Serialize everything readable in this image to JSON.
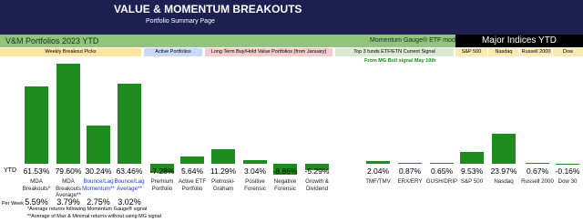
{
  "header": {
    "title": "VALUE & MOMENTUM BREAKOUTS",
    "subtitle": "Portfolio Summary Page"
  },
  "bands": [
    "V&M Portfolios 2023 YTD",
    "Momentum Gauge® ETF model",
    "Major Indices YTD"
  ],
  "sections": [
    "Weekly Breakout Picks",
    "Active Portfolios",
    "Long Term Buy/Hold Value Portfolios (from January)",
    "Top 3 funds ETF/ETN Current Signal",
    "S&P 500",
    "Nasdaq",
    "Russell 2000",
    "Dow"
  ],
  "chart_data": {
    "type": "bar",
    "annotation": "From MG Bull signal May 10th",
    "row_label": "YTD",
    "categories": [
      "MDA Breakouts*",
      "MDA Breakouts Average**",
      "Bounce/Lag Momentum**",
      "Bounce/Lag Average**",
      "Premium Portfolio",
      "Active ETF Portfolio",
      "Piotroski-Graham",
      "Positive Forensic",
      "Negative Forensic",
      "Growth & Dividend",
      "TMF/TMV",
      "ERX/ERY",
      "GUSH/DRIP",
      "S&P 500",
      "Nasdaq",
      "Russell 2000",
      "Dow 30"
    ],
    "values": [
      61.53,
      79.6,
      30.24,
      63.46,
      -7.28,
      5.64,
      11.29,
      3.04,
      -8.86,
      -5.29,
      2.04,
      0.87,
      0.65,
      9.53,
      23.97,
      0.67,
      -0.16
    ],
    "value_labels": [
      "61.53%",
      "79.60%",
      "30.24%",
      "63.46%",
      "-7.28%",
      "5.64%",
      "11.29%",
      "3.04%",
      "-8.86%",
      "-5.29%",
      "2.04%",
      "0.87%",
      "0.65%",
      "9.53%",
      "23.97%",
      "0.67%",
      "-0.16%"
    ],
    "color": "#1e8c1e",
    "per_week": {
      "label": "Per Week",
      "values": [
        5.59,
        3.79,
        2.75,
        3.02
      ],
      "value_labels": [
        "5.59%",
        "3.79%",
        "2.75%",
        "3.02%"
      ]
    }
  },
  "footnotes": [
    "*Average returns following Momentum Gauge® signal",
    "**Average of Max & Minimal returns without using MG signal"
  ]
}
